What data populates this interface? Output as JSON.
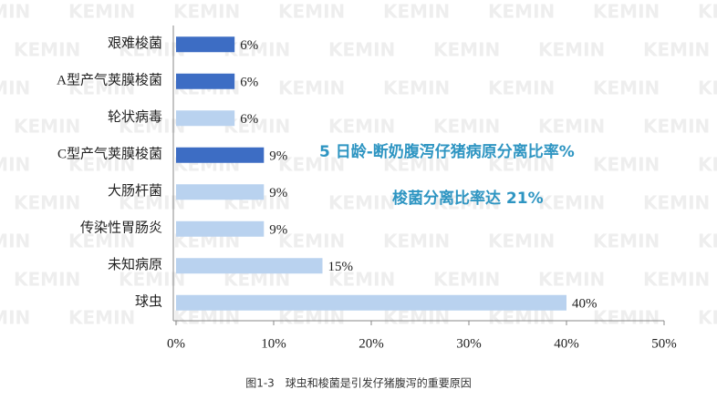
{
  "chart_data": {
    "type": "bar",
    "orientation": "horizontal",
    "categories": [
      "艰难梭菌",
      "A型产气荚膜梭菌",
      "轮状病毒",
      "C型产气荚膜梭菌",
      "大肠杆菌",
      "传染性胃肠炎",
      "未知病原",
      "球虫"
    ],
    "values": [
      6,
      6,
      6,
      9,
      9,
      9,
      15,
      40
    ],
    "value_labels": [
      "6%",
      "6%",
      "6%",
      "9%",
      "9%",
      "9%",
      "15%",
      "40%"
    ],
    "colors": [
      "#3d6dc4",
      "#3d6dc4",
      "#b9d2ef",
      "#3d6dc4",
      "#b9d2ef",
      "#b9d2ef",
      "#b9d2ef",
      "#b9d2ef"
    ],
    "xlim": [
      0,
      50
    ],
    "xticks": [
      {
        "value": 0,
        "label": "0%"
      },
      {
        "value": 10,
        "label": "10%"
      },
      {
        "value": 20,
        "label": "20%"
      },
      {
        "value": 30,
        "label": "30%"
      },
      {
        "value": 40,
        "label": "40%"
      },
      {
        "value": 50,
        "label": "50%"
      }
    ],
    "annotations": [
      "5 日龄-断奶腹泻仔猪病原分离比率%",
      "梭菌分离比率达 21%"
    ],
    "watermark": "KEMIN",
    "caption": "图1-3　球虫和梭菌是引发仔猪腹泻的重要原因"
  }
}
